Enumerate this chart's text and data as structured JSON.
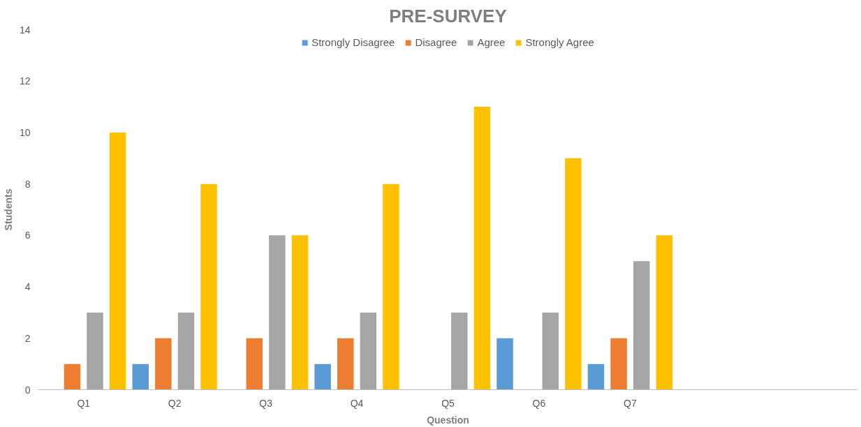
{
  "chart_data": {
    "type": "bar",
    "title": "PRE-SURVEY",
    "xlabel": "Question",
    "ylabel": "Students",
    "categories": [
      "Q1",
      "Q2",
      "Q3",
      "Q4",
      "Q5",
      "Q6",
      "Q7",
      null,
      null
    ],
    "series": [
      {
        "name": "Strongly Disagree",
        "color": "#5b9bd5",
        "values": [
          0,
          1,
          0,
          1,
          0,
          2,
          1,
          null,
          null
        ]
      },
      {
        "name": "Disagree",
        "color": "#ed7d31",
        "values": [
          1,
          2,
          2,
          2,
          0,
          0,
          2,
          null,
          null
        ]
      },
      {
        "name": "Agree",
        "color": "#a5a5a5",
        "values": [
          3,
          3,
          6,
          3,
          3,
          3,
          5,
          null,
          null
        ]
      },
      {
        "name": "Strongly Agree",
        "color": "#ffc000",
        "values": [
          10,
          8,
          6,
          8,
          11,
          9,
          6,
          null,
          null
        ]
      }
    ],
    "ylim": [
      0,
      14
    ],
    "yticks": [
      0,
      2,
      4,
      6,
      8,
      10,
      12,
      14
    ],
    "grid": false,
    "legend": "top"
  }
}
